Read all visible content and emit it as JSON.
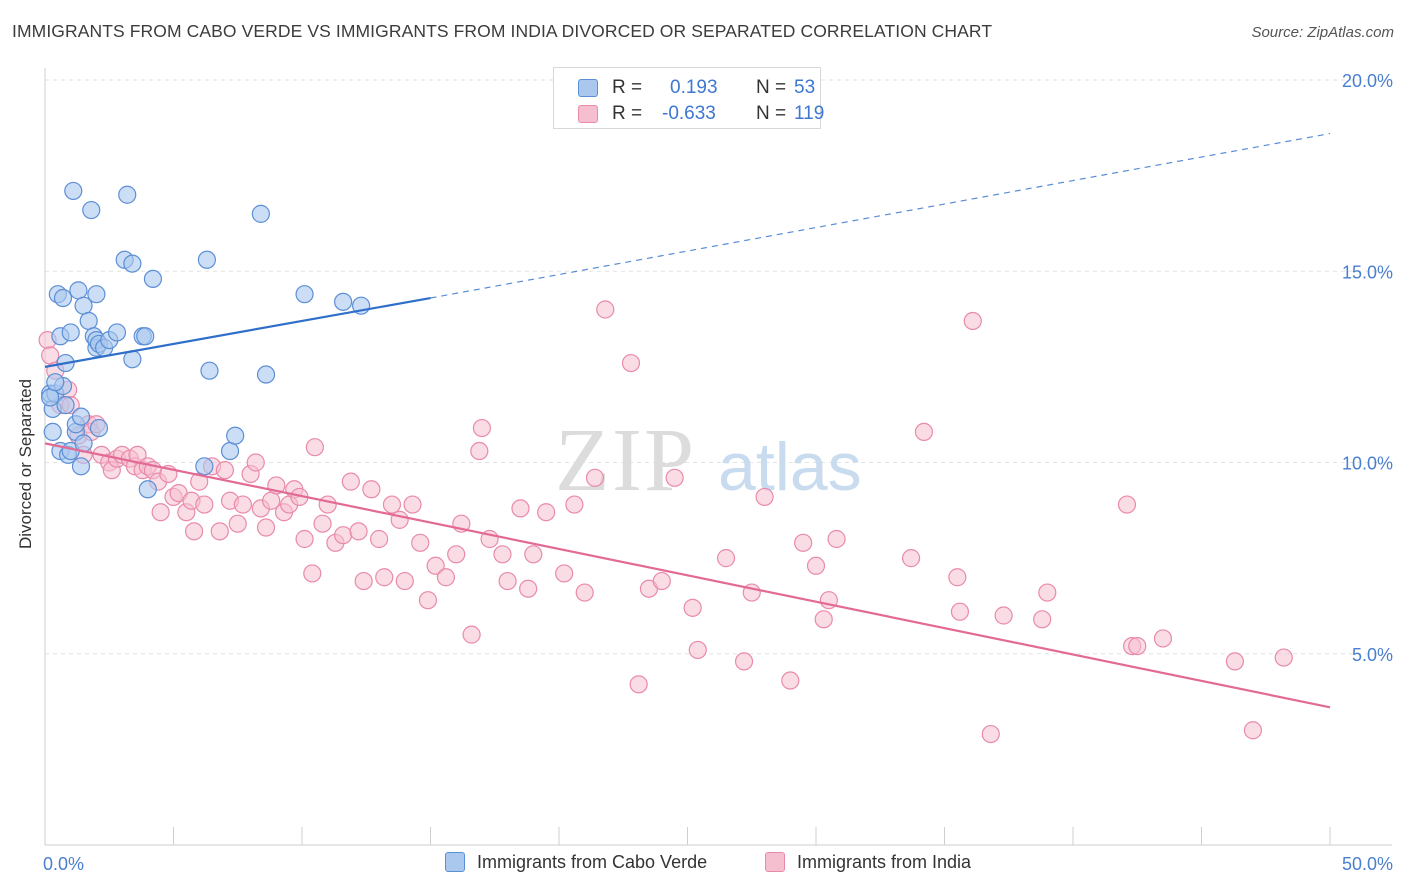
{
  "header": {
    "title": "IMMIGRANTS FROM CABO VERDE VS IMMIGRANTS FROM INDIA DIVORCED OR SEPARATED CORRELATION CHART",
    "source": "Source: ZipAtlas.com"
  },
  "stats": {
    "rows": [
      {
        "r_label": "R =",
        "r_value": "0.193",
        "n_label": "N =",
        "n_value": "53",
        "swatch": "blue"
      },
      {
        "r_label": "R =",
        "r_value": "-0.633",
        "n_label": "N =",
        "n_value": "119",
        "swatch": "pink"
      }
    ]
  },
  "watermark": {
    "zip": "ZIP",
    "atlas": "atlas"
  },
  "colors": {
    "blue_fill": "#aac8ee",
    "blue_stroke": "#5b8fd6",
    "blue_line": "#2f6fca",
    "pink_fill": "#f6bfd0",
    "pink_stroke": "#e98aab",
    "pink_line": "#e36a95",
    "axis_text": "#4a7fcf",
    "grid": "#e3e3e3"
  },
  "chart_data": {
    "type": "scatter",
    "title": "IMMIGRANTS FROM CABO VERDE VS IMMIGRANTS FROM INDIA DIVORCED OR SEPARATED CORRELATION CHART",
    "xlabel": "",
    "ylabel": "Divorced or Separated",
    "xlim": [
      0,
      50
    ],
    "ylim": [
      0,
      20
    ],
    "x_tick_labels": [
      {
        "value": 0,
        "label": "0.0%"
      },
      {
        "value": 50,
        "label": "50.0%"
      }
    ],
    "y_tick_labels": [
      {
        "value": 5,
        "label": "5.0%"
      },
      {
        "value": 10,
        "label": "10.0%"
      },
      {
        "value": 15,
        "label": "15.0%"
      },
      {
        "value": 20,
        "label": "20.0%"
      }
    ],
    "series": [
      {
        "name": "Immigrants from Cabo Verde",
        "color": "blue",
        "trend": {
          "x0": 0,
          "y0": 12.5,
          "x1": 15,
          "y1": 14.3,
          "dash_x1": 50,
          "dash_y1": 18.6
        },
        "points": [
          [
            0.2,
            11.8
          ],
          [
            0.3,
            11.4
          ],
          [
            0.4,
            11.8
          ],
          [
            0.3,
            10.8
          ],
          [
            0.5,
            14.4
          ],
          [
            0.6,
            13.3
          ],
          [
            0.6,
            10.3
          ],
          [
            0.7,
            14.3
          ],
          [
            0.7,
            12.0
          ],
          [
            0.8,
            11.5
          ],
          [
            0.8,
            12.6
          ],
          [
            0.9,
            10.2
          ],
          [
            1.0,
            10.3
          ],
          [
            1.0,
            13.4
          ],
          [
            1.1,
            17.1
          ],
          [
            1.2,
            10.8
          ],
          [
            1.2,
            11.0
          ],
          [
            1.3,
            14.5
          ],
          [
            1.4,
            11.2
          ],
          [
            1.4,
            9.9
          ],
          [
            1.5,
            10.5
          ],
          [
            1.5,
            14.1
          ],
          [
            1.7,
            13.7
          ],
          [
            1.8,
            16.6
          ],
          [
            1.9,
            13.3
          ],
          [
            2.0,
            13.0
          ],
          [
            2.0,
            13.2
          ],
          [
            2.0,
            14.4
          ],
          [
            2.1,
            10.9
          ],
          [
            2.1,
            13.1
          ],
          [
            2.3,
            13.0
          ],
          [
            2.5,
            13.2
          ],
          [
            2.8,
            13.4
          ],
          [
            3.1,
            15.3
          ],
          [
            3.2,
            17.0
          ],
          [
            3.4,
            12.7
          ],
          [
            3.4,
            15.2
          ],
          [
            3.8,
            13.3
          ],
          [
            3.9,
            13.3
          ],
          [
            4.0,
            9.3
          ],
          [
            4.2,
            14.8
          ],
          [
            6.2,
            9.9
          ],
          [
            6.3,
            15.3
          ],
          [
            6.4,
            12.4
          ],
          [
            7.2,
            10.3
          ],
          [
            7.4,
            10.7
          ],
          [
            8.4,
            16.5
          ],
          [
            8.6,
            12.3
          ],
          [
            10.1,
            14.4
          ],
          [
            11.6,
            14.2
          ],
          [
            12.3,
            14.1
          ],
          [
            0.2,
            11.7
          ],
          [
            0.4,
            12.1
          ]
        ]
      },
      {
        "name": "Immigrants from India",
        "color": "pink",
        "trend": {
          "x0": 0,
          "y0": 10.5,
          "x1": 50,
          "y1": 3.6
        },
        "points": [
          [
            0.1,
            13.2
          ],
          [
            0.2,
            12.8
          ],
          [
            0.4,
            12.4
          ],
          [
            0.6,
            11.5
          ],
          [
            0.9,
            11.9
          ],
          [
            1.0,
            11.5
          ],
          [
            1.3,
            10.7
          ],
          [
            1.5,
            10.2
          ],
          [
            1.7,
            11.0
          ],
          [
            1.8,
            10.8
          ],
          [
            2.0,
            11.0
          ],
          [
            2.2,
            10.2
          ],
          [
            2.5,
            10.0
          ],
          [
            2.6,
            9.8
          ],
          [
            2.8,
            10.1
          ],
          [
            3.0,
            10.2
          ],
          [
            3.3,
            10.1
          ],
          [
            3.5,
            9.9
          ],
          [
            3.6,
            10.2
          ],
          [
            3.8,
            9.8
          ],
          [
            4.0,
            9.9
          ],
          [
            4.2,
            9.8
          ],
          [
            4.4,
            9.5
          ],
          [
            4.5,
            8.7
          ],
          [
            4.8,
            9.7
          ],
          [
            5.0,
            9.1
          ],
          [
            5.2,
            9.2
          ],
          [
            5.5,
            8.7
          ],
          [
            5.7,
            9.0
          ],
          [
            5.8,
            8.2
          ],
          [
            6.0,
            9.5
          ],
          [
            6.2,
            8.9
          ],
          [
            6.5,
            9.9
          ],
          [
            6.8,
            8.2
          ],
          [
            7.0,
            9.8
          ],
          [
            7.2,
            9.0
          ],
          [
            7.5,
            8.4
          ],
          [
            7.7,
            8.9
          ],
          [
            8.0,
            9.7
          ],
          [
            8.2,
            10.0
          ],
          [
            8.4,
            8.8
          ],
          [
            8.6,
            8.3
          ],
          [
            8.8,
            9.0
          ],
          [
            9.0,
            9.4
          ],
          [
            9.3,
            8.7
          ],
          [
            9.5,
            8.9
          ],
          [
            9.7,
            9.3
          ],
          [
            9.9,
            9.1
          ],
          [
            10.1,
            8.0
          ],
          [
            10.4,
            7.1
          ],
          [
            10.5,
            10.4
          ],
          [
            10.8,
            8.4
          ],
          [
            11.0,
            8.9
          ],
          [
            11.3,
            7.9
          ],
          [
            11.6,
            8.1
          ],
          [
            11.9,
            9.5
          ],
          [
            12.2,
            8.2
          ],
          [
            12.4,
            6.9
          ],
          [
            12.7,
            9.3
          ],
          [
            13.0,
            8.0
          ],
          [
            13.2,
            7.0
          ],
          [
            13.5,
            8.9
          ],
          [
            13.8,
            8.5
          ],
          [
            14.0,
            6.9
          ],
          [
            14.3,
            8.9
          ],
          [
            14.6,
            7.9
          ],
          [
            14.9,
            6.4
          ],
          [
            15.2,
            7.3
          ],
          [
            15.6,
            7.0
          ],
          [
            16.0,
            7.6
          ],
          [
            16.2,
            8.4
          ],
          [
            16.6,
            5.5
          ],
          [
            17.0,
            10.9
          ],
          [
            17.3,
            8.0
          ],
          [
            17.8,
            7.6
          ],
          [
            18.0,
            6.9
          ],
          [
            18.5,
            8.8
          ],
          [
            18.8,
            6.7
          ],
          [
            19.0,
            7.6
          ],
          [
            19.5,
            8.7
          ],
          [
            20.2,
            7.1
          ],
          [
            20.6,
            8.9
          ],
          [
            21.0,
            6.6
          ],
          [
            21.4,
            9.6
          ],
          [
            21.8,
            14.0
          ],
          [
            22.8,
            12.6
          ],
          [
            23.1,
            4.2
          ],
          [
            23.5,
            6.7
          ],
          [
            24.0,
            6.9
          ],
          [
            24.5,
            9.6
          ],
          [
            25.2,
            6.2
          ],
          [
            25.4,
            5.1
          ],
          [
            26.5,
            7.5
          ],
          [
            27.2,
            4.8
          ],
          [
            27.5,
            6.6
          ],
          [
            28.0,
            9.1
          ],
          [
            29.0,
            4.3
          ],
          [
            29.5,
            7.9
          ],
          [
            30.0,
            7.3
          ],
          [
            30.3,
            5.9
          ],
          [
            30.5,
            6.4
          ],
          [
            30.8,
            8.0
          ],
          [
            33.7,
            7.5
          ],
          [
            34.2,
            10.8
          ],
          [
            35.5,
            7.0
          ],
          [
            35.6,
            6.1
          ],
          [
            36.1,
            13.7
          ],
          [
            36.8,
            2.9
          ],
          [
            37.3,
            6.0
          ],
          [
            38.8,
            5.9
          ],
          [
            39.0,
            6.6
          ],
          [
            42.1,
            8.9
          ],
          [
            42.3,
            5.2
          ],
          [
            42.5,
            5.2
          ],
          [
            43.5,
            5.4
          ],
          [
            46.3,
            4.8
          ],
          [
            47.0,
            3.0
          ],
          [
            48.2,
            4.9
          ],
          [
            16.9,
            10.3
          ]
        ]
      }
    ],
    "legend": [
      {
        "label": "Immigrants from Cabo Verde",
        "color": "blue"
      },
      {
        "label": "Immigrants from India",
        "color": "pink"
      }
    ]
  }
}
